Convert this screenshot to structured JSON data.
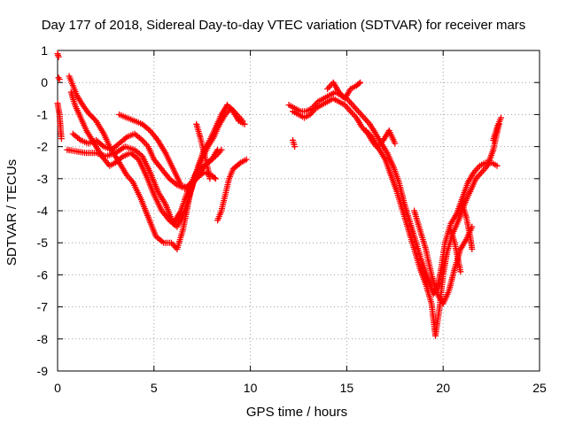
{
  "chart_data": {
    "type": "scatter",
    "title": "Day 177 of 2018, Sidereal Day-to-day VTEC variation (SDTVAR) for receiver mars",
    "xlabel": "GPS time / hours",
    "ylabel": "SDTVAR / TECUs",
    "xlim": [
      0,
      25
    ],
    "ylim": [
      -9,
      1
    ],
    "xticks": [
      0,
      5,
      10,
      15,
      20,
      25
    ],
    "yticks": [
      1,
      0,
      -1,
      -2,
      -3,
      -4,
      -5,
      -6,
      -7,
      -8,
      -9
    ],
    "xtick_labels": [
      "0",
      "5",
      "10",
      "15",
      "20",
      "25"
    ],
    "ytick_labels": [
      "1",
      "0",
      "-1",
      "-2",
      "-3",
      "-4",
      "-5",
      "-6",
      "-7",
      "-8",
      "-9"
    ],
    "grid": true,
    "marker": "+",
    "series": [
      {
        "name": "SDTVAR",
        "color": "#ff0000",
        "tracks": [
          [
            [
              0.0,
              0.9
            ],
            [
              0.05,
              0.8
            ]
          ],
          [
            [
              0.05,
              0.15
            ],
            [
              0.1,
              0.1
            ]
          ],
          [
            [
              0.0,
              -0.65
            ],
            [
              0.1,
              -1.0
            ],
            [
              0.15,
              -1.4
            ],
            [
              0.2,
              -1.75
            ]
          ],
          [
            [
              0.6,
              0.2
            ],
            [
              0.8,
              -0.1
            ],
            [
              1.0,
              -0.4
            ],
            [
              1.3,
              -0.7
            ],
            [
              1.6,
              -0.95
            ],
            [
              2.0,
              -1.2
            ],
            [
              2.4,
              -1.6
            ],
            [
              2.7,
              -2.0
            ],
            [
              3.0,
              -2.3
            ],
            [
              3.3,
              -2.6
            ],
            [
              3.6,
              -2.9
            ],
            [
              3.9,
              -3.1
            ],
            [
              4.3,
              -3.6
            ],
            [
              4.7,
              -4.2
            ],
            [
              5.1,
              -4.8
            ],
            [
              5.5,
              -5.0
            ],
            [
              5.9,
              -5.0
            ],
            [
              6.2,
              -5.2
            ],
            [
              6.5,
              -4.6
            ],
            [
              6.9,
              -3.4
            ],
            [
              7.3,
              -2.6
            ],
            [
              7.6,
              -2.1
            ],
            [
              7.9,
              -1.8
            ],
            [
              8.2,
              -1.4
            ],
            [
              8.5,
              -1.0
            ],
            [
              8.8,
              -0.7
            ],
            [
              9.1,
              -0.9
            ],
            [
              9.4,
              -1.2
            ],
            [
              9.7,
              -1.3
            ]
          ],
          [
            [
              0.7,
              -0.3
            ],
            [
              0.9,
              -0.7
            ],
            [
              1.2,
              -1.1
            ],
            [
              1.5,
              -1.5
            ],
            [
              1.9,
              -1.9
            ],
            [
              2.3,
              -2.3
            ],
            [
              2.7,
              -2.6
            ],
            [
              3.0,
              -2.5
            ],
            [
              3.4,
              -2.3
            ],
            [
              3.8,
              -2.2
            ],
            [
              4.2,
              -2.4
            ],
            [
              4.6,
              -2.9
            ],
            [
              5.0,
              -3.5
            ],
            [
              5.4,
              -4.0
            ],
            [
              5.8,
              -4.3
            ],
            [
              6.2,
              -4.5
            ],
            [
              6.6,
              -4.0
            ],
            [
              7.0,
              -3.2
            ],
            [
              7.4,
              -2.5
            ],
            [
              7.8,
              -2.0
            ],
            [
              8.1,
              -1.7
            ],
            [
              8.4,
              -1.3
            ],
            [
              8.7,
              -1.0
            ],
            [
              9.0,
              -0.8
            ],
            [
              9.3,
              -1.0
            ],
            [
              9.6,
              -1.2
            ]
          ],
          [
            [
              0.5,
              -2.1
            ],
            [
              1.0,
              -2.15
            ],
            [
              1.5,
              -2.2
            ],
            [
              2.0,
              -2.2
            ],
            [
              2.5,
              -2.3
            ],
            [
              3.0,
              -2.2
            ],
            [
              3.5,
              -2.0
            ],
            [
              4.0,
              -2.1
            ],
            [
              4.4,
              -2.3
            ],
            [
              4.8,
              -2.8
            ],
            [
              5.2,
              -3.4
            ],
            [
              5.6,
              -3.8
            ],
            [
              6.0,
              -4.4
            ],
            [
              6.4,
              -4.0
            ],
            [
              6.8,
              -3.3
            ],
            [
              7.2,
              -2.8
            ],
            [
              7.6,
              -2.6
            ],
            [
              8.0,
              -2.4
            ],
            [
              8.3,
              -2.1
            ]
          ],
          [
            [
              0.8,
              -1.6
            ],
            [
              1.2,
              -1.8
            ],
            [
              1.6,
              -1.9
            ],
            [
              2.0,
              -1.8
            ],
            [
              2.4,
              -2.0
            ],
            [
              2.8,
              -2.1
            ],
            [
              3.2,
              -1.9
            ],
            [
              3.6,
              -1.7
            ],
            [
              4.0,
              -1.6
            ],
            [
              4.4,
              -1.8
            ],
            [
              4.7,
              -2.0
            ],
            [
              5.0,
              -2.4
            ],
            [
              5.4,
              -2.7
            ],
            [
              5.8,
              -3.0
            ],
            [
              6.2,
              -3.2
            ],
            [
              6.6,
              -3.3
            ],
            [
              7.0,
              -3.1
            ],
            [
              7.4,
              -2.8
            ],
            [
              7.8,
              -2.5
            ],
            [
              8.2,
              -2.3
            ],
            [
              8.5,
              -2.1
            ]
          ],
          [
            [
              3.2,
              -1.0
            ],
            [
              3.6,
              -1.1
            ],
            [
              4.0,
              -1.2
            ],
            [
              4.4,
              -1.3
            ],
            [
              4.8,
              -1.5
            ],
            [
              5.2,
              -1.8
            ],
            [
              5.6,
              -2.2
            ],
            [
              6.0,
              -2.7
            ],
            [
              6.4,
              -3.2
            ],
            [
              6.8,
              -3.3
            ],
            [
              7.2,
              -3.0
            ],
            [
              7.6,
              -2.8
            ],
            [
              8.0,
              -2.9
            ],
            [
              8.2,
              -3.0
            ]
          ],
          [
            [
              8.3,
              -4.3
            ],
            [
              8.5,
              -4.0
            ],
            [
              8.7,
              -3.5
            ],
            [
              8.9,
              -3.0
            ],
            [
              9.1,
              -2.7
            ],
            [
              9.3,
              -2.6
            ],
            [
              9.5,
              -2.5
            ],
            [
              9.8,
              -2.4
            ]
          ],
          [
            [
              7.2,
              -1.3
            ],
            [
              7.4,
              -1.7
            ],
            [
              7.6,
              -2.2
            ],
            [
              7.8,
              -2.7
            ],
            [
              7.9,
              -3.0
            ]
          ],
          [
            [
              12.0,
              -0.7
            ],
            [
              12.3,
              -0.8
            ],
            [
              12.6,
              -0.9
            ],
            [
              12.9,
              -0.9
            ],
            [
              13.2,
              -0.8
            ],
            [
              13.5,
              -0.6
            ],
            [
              13.8,
              -0.5
            ],
            [
              14.1,
              -0.4
            ],
            [
              14.4,
              -0.3
            ],
            [
              14.7,
              -0.4
            ],
            [
              15.0,
              -0.5
            ],
            [
              15.3,
              -0.7
            ],
            [
              15.6,
              -0.9
            ],
            [
              15.9,
              -1.1
            ],
            [
              16.2,
              -1.3
            ],
            [
              16.5,
              -1.6
            ],
            [
              16.8,
              -1.9
            ],
            [
              17.1,
              -2.2
            ],
            [
              17.4,
              -2.6
            ],
            [
              17.7,
              -3.1
            ],
            [
              18.0,
              -3.8
            ],
            [
              18.3,
              -4.4
            ],
            [
              18.6,
              -5.0
            ],
            [
              18.9,
              -5.6
            ],
            [
              19.2,
              -6.1
            ],
            [
              19.5,
              -6.6
            ],
            [
              19.7,
              -6.4
            ],
            [
              19.9,
              -5.8
            ],
            [
              20.1,
              -5.0
            ],
            [
              20.4,
              -4.4
            ],
            [
              20.7,
              -4.1
            ],
            [
              21.0,
              -3.6
            ],
            [
              21.3,
              -3.1
            ],
            [
              21.6,
              -2.8
            ],
            [
              21.9,
              -2.6
            ],
            [
              22.2,
              -2.5
            ],
            [
              22.5,
              -2.5
            ],
            [
              22.8,
              -2.6
            ]
          ],
          [
            [
              12.2,
              -0.9
            ],
            [
              12.5,
              -1.0
            ],
            [
              12.8,
              -1.1
            ],
            [
              13.1,
              -1.0
            ],
            [
              13.4,
              -0.8
            ],
            [
              13.7,
              -0.7
            ],
            [
              14.0,
              -0.6
            ],
            [
              14.3,
              -0.5
            ],
            [
              14.6,
              -0.6
            ],
            [
              14.9,
              -0.7
            ],
            [
              15.2,
              -0.9
            ],
            [
              15.5,
              -1.1
            ],
            [
              15.8,
              -1.4
            ],
            [
              16.1,
              -1.6
            ],
            [
              16.4,
              -1.9
            ],
            [
              16.7,
              -2.1
            ],
            [
              17.0,
              -2.4
            ],
            [
              17.3,
              -2.9
            ],
            [
              17.6,
              -3.4
            ],
            [
              17.9,
              -4.0
            ],
            [
              18.2,
              -4.6
            ],
            [
              18.5,
              -5.2
            ],
            [
              18.8,
              -5.8
            ],
            [
              19.1,
              -6.3
            ],
            [
              19.4,
              -6.9
            ],
            [
              19.6,
              -7.9
            ],
            [
              19.8,
              -7.1
            ],
            [
              20.0,
              -6.0
            ],
            [
              20.2,
              -5.3
            ],
            [
              20.5,
              -4.7
            ],
            [
              20.8,
              -4.3
            ],
            [
              21.1,
              -3.8
            ],
            [
              21.4,
              -3.4
            ],
            [
              21.7,
              -3.0
            ],
            [
              22.0,
              -2.8
            ],
            [
              22.3,
              -2.6
            ],
            [
              22.6,
              -2.1
            ],
            [
              22.9,
              -1.3
            ]
          ],
          [
            [
              14.0,
              -0.2
            ],
            [
              14.3,
              0.0
            ],
            [
              14.6,
              -0.3
            ],
            [
              14.9,
              -0.5
            ],
            [
              15.2,
              -0.2
            ],
            [
              15.5,
              -0.1
            ],
            [
              15.7,
              0.0
            ]
          ],
          [
            [
              12.2,
              -1.8
            ],
            [
              12.3,
              -2.0
            ]
          ],
          [
            [
              16.0,
              -1.5
            ],
            [
              16.3,
              -1.7
            ],
            [
              16.6,
              -2.0
            ],
            [
              16.9,
              -1.8
            ],
            [
              17.2,
              -1.5
            ],
            [
              17.5,
              -1.9
            ]
          ],
          [
            [
              18.5,
              -4.0
            ],
            [
              18.8,
              -4.6
            ],
            [
              19.1,
              -5.2
            ],
            [
              19.4,
              -6.0
            ],
            [
              19.7,
              -6.6
            ],
            [
              20.0,
              -6.9
            ],
            [
              20.3,
              -6.5
            ],
            [
              20.6,
              -5.8
            ],
            [
              20.9,
              -5.2
            ],
            [
              21.2,
              -4.9
            ],
            [
              21.5,
              -4.5
            ]
          ],
          [
            [
              20.4,
              -4.6
            ],
            [
              20.6,
              -5.0
            ],
            [
              20.8,
              -5.6
            ],
            [
              20.9,
              -5.9
            ]
          ],
          [
            [
              21.0,
              -3.8
            ],
            [
              21.2,
              -4.2
            ],
            [
              21.4,
              -4.8
            ],
            [
              21.5,
              -5.2
            ]
          ],
          [
            [
              22.6,
              -1.8
            ],
            [
              22.8,
              -1.4
            ],
            [
              23.0,
              -1.1
            ]
          ]
        ]
      }
    ]
  }
}
